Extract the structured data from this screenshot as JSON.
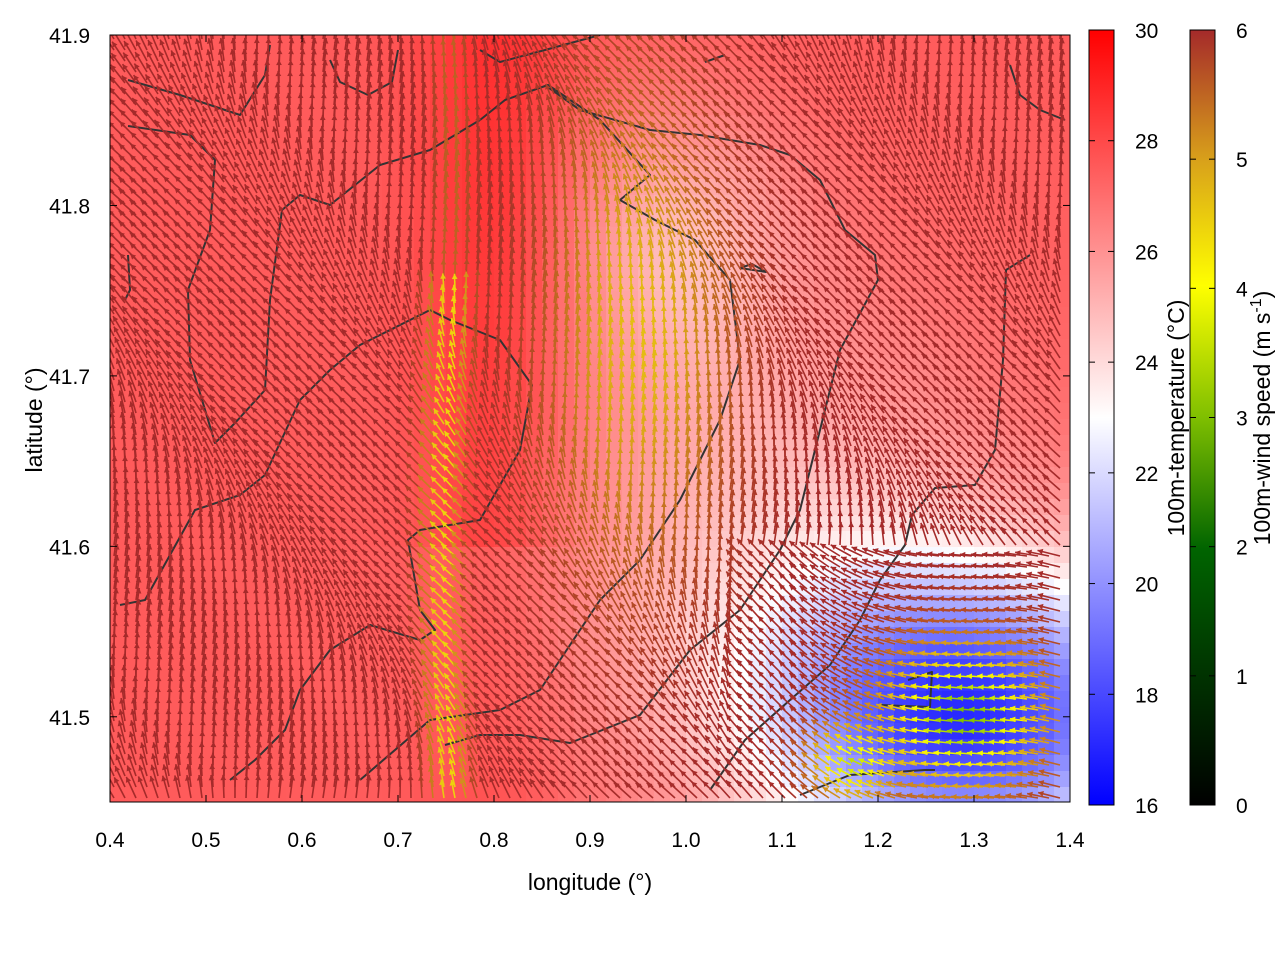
{
  "chart_data": {
    "type": "heatmap",
    "title": "",
    "xlabel": "longitude (°)",
    "ylabel": "latitude (°)",
    "xlim": [
      0.4,
      1.4
    ],
    "ylim": [
      41.45,
      41.9
    ],
    "x_ticks": [
      "0.4",
      "0.5",
      "0.6",
      "0.7",
      "0.8",
      "0.9",
      "1.0",
      "1.1",
      "1.2",
      "1.3",
      "1.4"
    ],
    "y_ticks": [
      "41.5",
      "41.6",
      "41.7",
      "41.8",
      "41.9"
    ],
    "layers": [
      {
        "kind": "filled-field",
        "quantity": "100m-temperature",
        "description": "warm (26–29 °C) over north and west, cooler (17–21 °C) over south-east"
      },
      {
        "kind": "vector-field",
        "quantity": "100m-wind",
        "description": "mostly strong (≈6 m/s) winds; weaker (3–5 m/s) winds along a band near lon 0.75 and lon 0.9–1.05 and in the south-east"
      },
      {
        "kind": "contour-lines",
        "color": "#333333"
      }
    ],
    "colorbars": [
      {
        "label": "100m-temperature (°C)",
        "range": [
          16,
          30
        ],
        "ticks": [
          "16",
          "18",
          "20",
          "22",
          "24",
          "26",
          "28",
          "30"
        ],
        "colors": [
          "#0000ff",
          "#ffffff",
          "#ff0000"
        ]
      },
      {
        "label_main": "100m-wind speed (m s",
        "label_sup": "-1",
        "label_end": ")",
        "range": [
          0,
          6
        ],
        "ticks": [
          "0",
          "1",
          "2",
          "3",
          "4",
          "5",
          "6"
        ],
        "colors": [
          "#000000",
          "#006400",
          "#80c000",
          "#ffff00",
          "#e6b400",
          "#c06020",
          "#a52a2a"
        ]
      }
    ],
    "grid": false,
    "legend": "colorbars at right"
  }
}
